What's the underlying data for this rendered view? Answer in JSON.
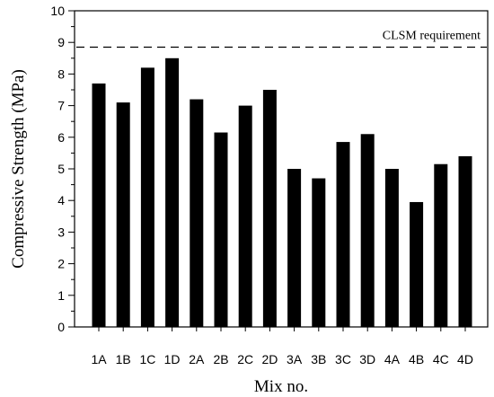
{
  "chart_data": {
    "type": "bar",
    "title": "",
    "xlabel": "Mix no.",
    "ylabel": "Compressive Strength (MPa)",
    "categories": [
      "1A",
      "1B",
      "1C",
      "1D",
      "2A",
      "2B",
      "2C",
      "2D",
      "3A",
      "3B",
      "3C",
      "3D",
      "4A",
      "4B",
      "4C",
      "4D"
    ],
    "values": [
      7.7,
      7.1,
      8.2,
      8.5,
      7.2,
      6.15,
      7.0,
      7.5,
      5.0,
      4.7,
      5.85,
      6.1,
      5.0,
      3.95,
      5.15,
      5.4
    ],
    "ylim": [
      0,
      10
    ],
    "yticks": [
      "0",
      "1",
      "2",
      "3",
      "4",
      "5",
      "6",
      "7",
      "8",
      "9",
      "10"
    ],
    "grid": false,
    "bar_color": "#000000",
    "reference_line": {
      "label": "CLSM requirement",
      "value": 8.85,
      "style": "dashed"
    }
  }
}
